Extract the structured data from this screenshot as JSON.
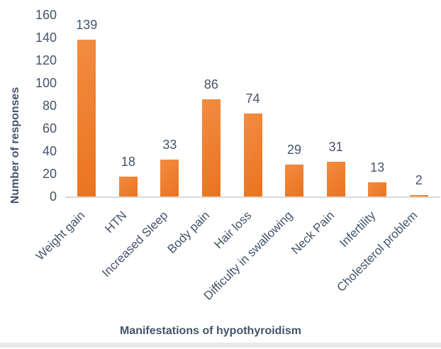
{
  "chart_data": {
    "type": "bar",
    "title": "",
    "categories": [
      "Weight gain",
      "HTN",
      "Increased Sleep",
      "Body pain",
      "Hair loss",
      "Difficulty in swallowing",
      "Neck Pain",
      "Infertility",
      "Cholesterol problem"
    ],
    "values": [
      139,
      18,
      33,
      86,
      74,
      29,
      31,
      13,
      2
    ],
    "data_labels": [
      "139",
      "18",
      "33",
      "86",
      "74",
      "29",
      "31",
      "13",
      "2"
    ],
    "xlabel": "Manifestations of hypothyroidism",
    "ylabel": "Number of responses",
    "ylim": [
      0,
      160
    ],
    "ytick_step": 20,
    "yticks": [
      "0",
      "20",
      "40",
      "60",
      "80",
      "100",
      "120",
      "140",
      "160"
    ],
    "grid": false,
    "legend": false,
    "bar_orientation": "vertical",
    "colors": {
      "bar": "#ED7D31",
      "bar_gradient_light": "#F28C42",
      "bar_gradient_dark": "#EA731E",
      "text": "#44546A",
      "axis_line": "#D9D9D9",
      "footer_strip": "#E9E9E9",
      "background": "#FFFFFF"
    }
  }
}
